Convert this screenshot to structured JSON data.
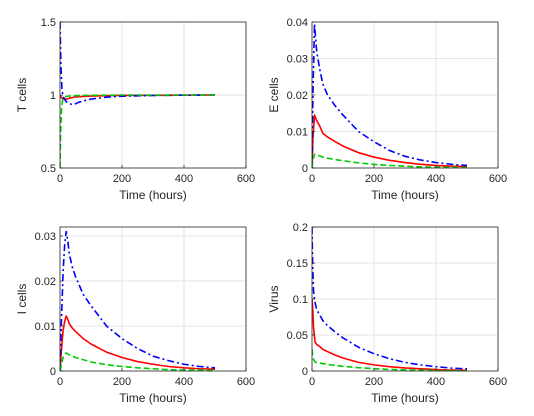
{
  "chart_data": [
    {
      "type": "line",
      "title": "",
      "xlabel": "Time (hours)",
      "ylabel": "T cells",
      "xlim": [
        0,
        600
      ],
      "ylim": [
        0.5,
        1.5
      ],
      "xticks": [
        0,
        200,
        400,
        600
      ],
      "yticks": [
        0.5,
        1,
        1.5
      ],
      "ytick_labels": [
        "0.5",
        "1",
        "1.5"
      ],
      "grid": true,
      "series": [
        {
          "color": "#ff0000",
          "style": "solid",
          "x": [
            0,
            5,
            10,
            20,
            30,
            40,
            50,
            75,
            100,
            150,
            200,
            300,
            400,
            500
          ],
          "y": [
            1.0,
            0.98,
            0.975,
            0.972,
            0.978,
            0.983,
            0.987,
            0.99,
            0.993,
            0.995,
            0.997,
            0.998,
            0.999,
            1.0
          ]
        },
        {
          "color": "#0000ff",
          "style": "dashdot",
          "x": [
            0,
            3,
            6,
            10,
            15,
            20,
            30,
            40,
            50,
            60,
            80,
            100,
            150,
            200,
            300,
            400,
            500
          ],
          "y": [
            1.5,
            1.2,
            1.05,
            0.99,
            0.97,
            0.955,
            0.94,
            0.935,
            0.94,
            0.95,
            0.962,
            0.972,
            0.985,
            0.992,
            0.997,
            0.999,
            1.0
          ]
        },
        {
          "color": "#00cc00",
          "style": "dashed",
          "x": [
            0,
            2,
            5,
            8,
            12,
            20,
            30,
            50,
            75,
            100,
            150,
            200,
            300,
            400,
            500
          ],
          "y": [
            0.5,
            0.75,
            0.9,
            0.96,
            0.98,
            0.99,
            0.993,
            0.995,
            0.997,
            0.998,
            0.999,
            1.0,
            1.0,
            1.0,
            1.0
          ]
        }
      ]
    },
    {
      "type": "line",
      "title": "",
      "xlabel": "Time (hours)",
      "ylabel": "E cells",
      "xlim": [
        0,
        600
      ],
      "ylim": [
        0,
        0.04
      ],
      "xticks": [
        0,
        200,
        400,
        600
      ],
      "yticks": [
        0,
        0.01,
        0.02,
        0.03,
        0.04
      ],
      "ytick_labels": [
        "0",
        "0.01",
        "0.02",
        "0.03",
        "0.04"
      ],
      "grid": true,
      "series": [
        {
          "color": "#ff0000",
          "style": "solid",
          "x": [
            0,
            3,
            8,
            15,
            25,
            35,
            50,
            75,
            100,
            150,
            200,
            250,
            300,
            350,
            400,
            450,
            500
          ],
          "y": [
            0.0,
            0.008,
            0.0145,
            0.013,
            0.0115,
            0.0095,
            0.0085,
            0.0072,
            0.006,
            0.0042,
            0.003,
            0.0021,
            0.0015,
            0.001,
            0.0007,
            0.0005,
            0.0004
          ]
        },
        {
          "color": "#0000ff",
          "style": "dashdot",
          "x": [
            0,
            3,
            8,
            15,
            25,
            35,
            50,
            75,
            100,
            150,
            200,
            250,
            300,
            350,
            400,
            450,
            500
          ],
          "y": [
            0.0,
            0.02,
            0.0395,
            0.032,
            0.027,
            0.023,
            0.02,
            0.017,
            0.0145,
            0.01,
            0.0072,
            0.0048,
            0.0032,
            0.0022,
            0.0015,
            0.001,
            0.0007
          ]
        },
        {
          "color": "#00cc00",
          "style": "dashed",
          "x": [
            0,
            3,
            8,
            15,
            25,
            35,
            50,
            75,
            100,
            150,
            200,
            250,
            300,
            350,
            400,
            450,
            500
          ],
          "y": [
            0.0,
            0.002,
            0.0038,
            0.0036,
            0.0033,
            0.003,
            0.0027,
            0.0023,
            0.002,
            0.0014,
            0.001,
            0.0007,
            0.0005,
            0.0003,
            0.0002,
            0.0002,
            0.0001
          ]
        }
      ]
    },
    {
      "type": "line",
      "title": "",
      "xlabel": "Time (hours)",
      "ylabel": "I cells",
      "xlim": [
        0,
        600
      ],
      "ylim": [
        0,
        0.032
      ],
      "xticks": [
        0,
        200,
        400,
        600
      ],
      "yticks": [
        0,
        0.01,
        0.02,
        0.03
      ],
      "ytick_labels": [
        "0",
        "0.01",
        "0.02",
        "0.03"
      ],
      "grid": true,
      "series": [
        {
          "color": "#ff0000",
          "style": "solid",
          "x": [
            0,
            5,
            10,
            15,
            20,
            25,
            30,
            40,
            50,
            75,
            100,
            150,
            200,
            250,
            300,
            350,
            400,
            450,
            500
          ],
          "y": [
            0.0,
            0.005,
            0.009,
            0.011,
            0.0122,
            0.0115,
            0.0105,
            0.0095,
            0.0088,
            0.0072,
            0.006,
            0.0042,
            0.003,
            0.0021,
            0.0015,
            0.001,
            0.0007,
            0.0005,
            0.0004
          ]
        },
        {
          "color": "#0000ff",
          "style": "dashdot",
          "x": [
            0,
            5,
            10,
            15,
            20,
            25,
            30,
            40,
            50,
            75,
            100,
            150,
            200,
            250,
            300,
            350,
            400,
            450,
            500
          ],
          "y": [
            0.0,
            0.012,
            0.022,
            0.028,
            0.031,
            0.029,
            0.026,
            0.023,
            0.021,
            0.017,
            0.0145,
            0.01,
            0.0072,
            0.005,
            0.0033,
            0.0023,
            0.0015,
            0.001,
            0.0007
          ]
        },
        {
          "color": "#00cc00",
          "style": "dashed",
          "x": [
            0,
            5,
            10,
            15,
            20,
            25,
            30,
            40,
            50,
            75,
            100,
            150,
            200,
            250,
            300,
            350,
            400,
            450,
            500
          ],
          "y": [
            0.0,
            0.0015,
            0.003,
            0.0037,
            0.004,
            0.0038,
            0.0036,
            0.0033,
            0.003,
            0.0025,
            0.002,
            0.0014,
            0.001,
            0.0007,
            0.0005,
            0.0003,
            0.0002,
            0.0002,
            0.0001
          ]
        }
      ]
    },
    {
      "type": "line",
      "title": "",
      "xlabel": "Time (hours)",
      "ylabel": "Virus",
      "xlim": [
        0,
        600
      ],
      "ylim": [
        0,
        0.2
      ],
      "xticks": [
        0,
        200,
        400,
        600
      ],
      "yticks": [
        0,
        0.05,
        0.1,
        0.15,
        0.2
      ],
      "ytick_labels": [
        "0",
        "0.05",
        "0.1",
        "0.15",
        "0.2"
      ],
      "grid": true,
      "series": [
        {
          "color": "#ff0000",
          "style": "solid",
          "x": [
            0,
            2,
            5,
            10,
            15,
            25,
            35,
            50,
            75,
            100,
            150,
            200,
            250,
            300,
            350,
            400,
            450,
            500
          ],
          "y": [
            0.1,
            0.09,
            0.06,
            0.04,
            0.037,
            0.034,
            0.03,
            0.027,
            0.022,
            0.018,
            0.012,
            0.0085,
            0.006,
            0.0042,
            0.003,
            0.002,
            0.0014,
            0.001
          ]
        },
        {
          "color": "#0000ff",
          "style": "dashdot",
          "x": [
            0,
            2,
            5,
            10,
            15,
            25,
            35,
            50,
            75,
            100,
            150,
            200,
            250,
            300,
            350,
            400,
            450,
            500
          ],
          "y": [
            0.2,
            0.15,
            0.11,
            0.095,
            0.085,
            0.078,
            0.07,
            0.063,
            0.054,
            0.046,
            0.033,
            0.024,
            0.017,
            0.012,
            0.0085,
            0.006,
            0.004,
            0.003
          ]
        },
        {
          "color": "#00cc00",
          "style": "dashed",
          "x": [
            0,
            2,
            5,
            10,
            15,
            25,
            35,
            50,
            75,
            100,
            150,
            200,
            250,
            300,
            350,
            400,
            450,
            500
          ],
          "y": [
            0.03,
            0.022,
            0.016,
            0.0125,
            0.0115,
            0.011,
            0.0102,
            0.0092,
            0.0078,
            0.0065,
            0.0046,
            0.0032,
            0.0022,
            0.0015,
            0.001,
            0.0007,
            0.0005,
            0.0003
          ]
        }
      ]
    }
  ]
}
